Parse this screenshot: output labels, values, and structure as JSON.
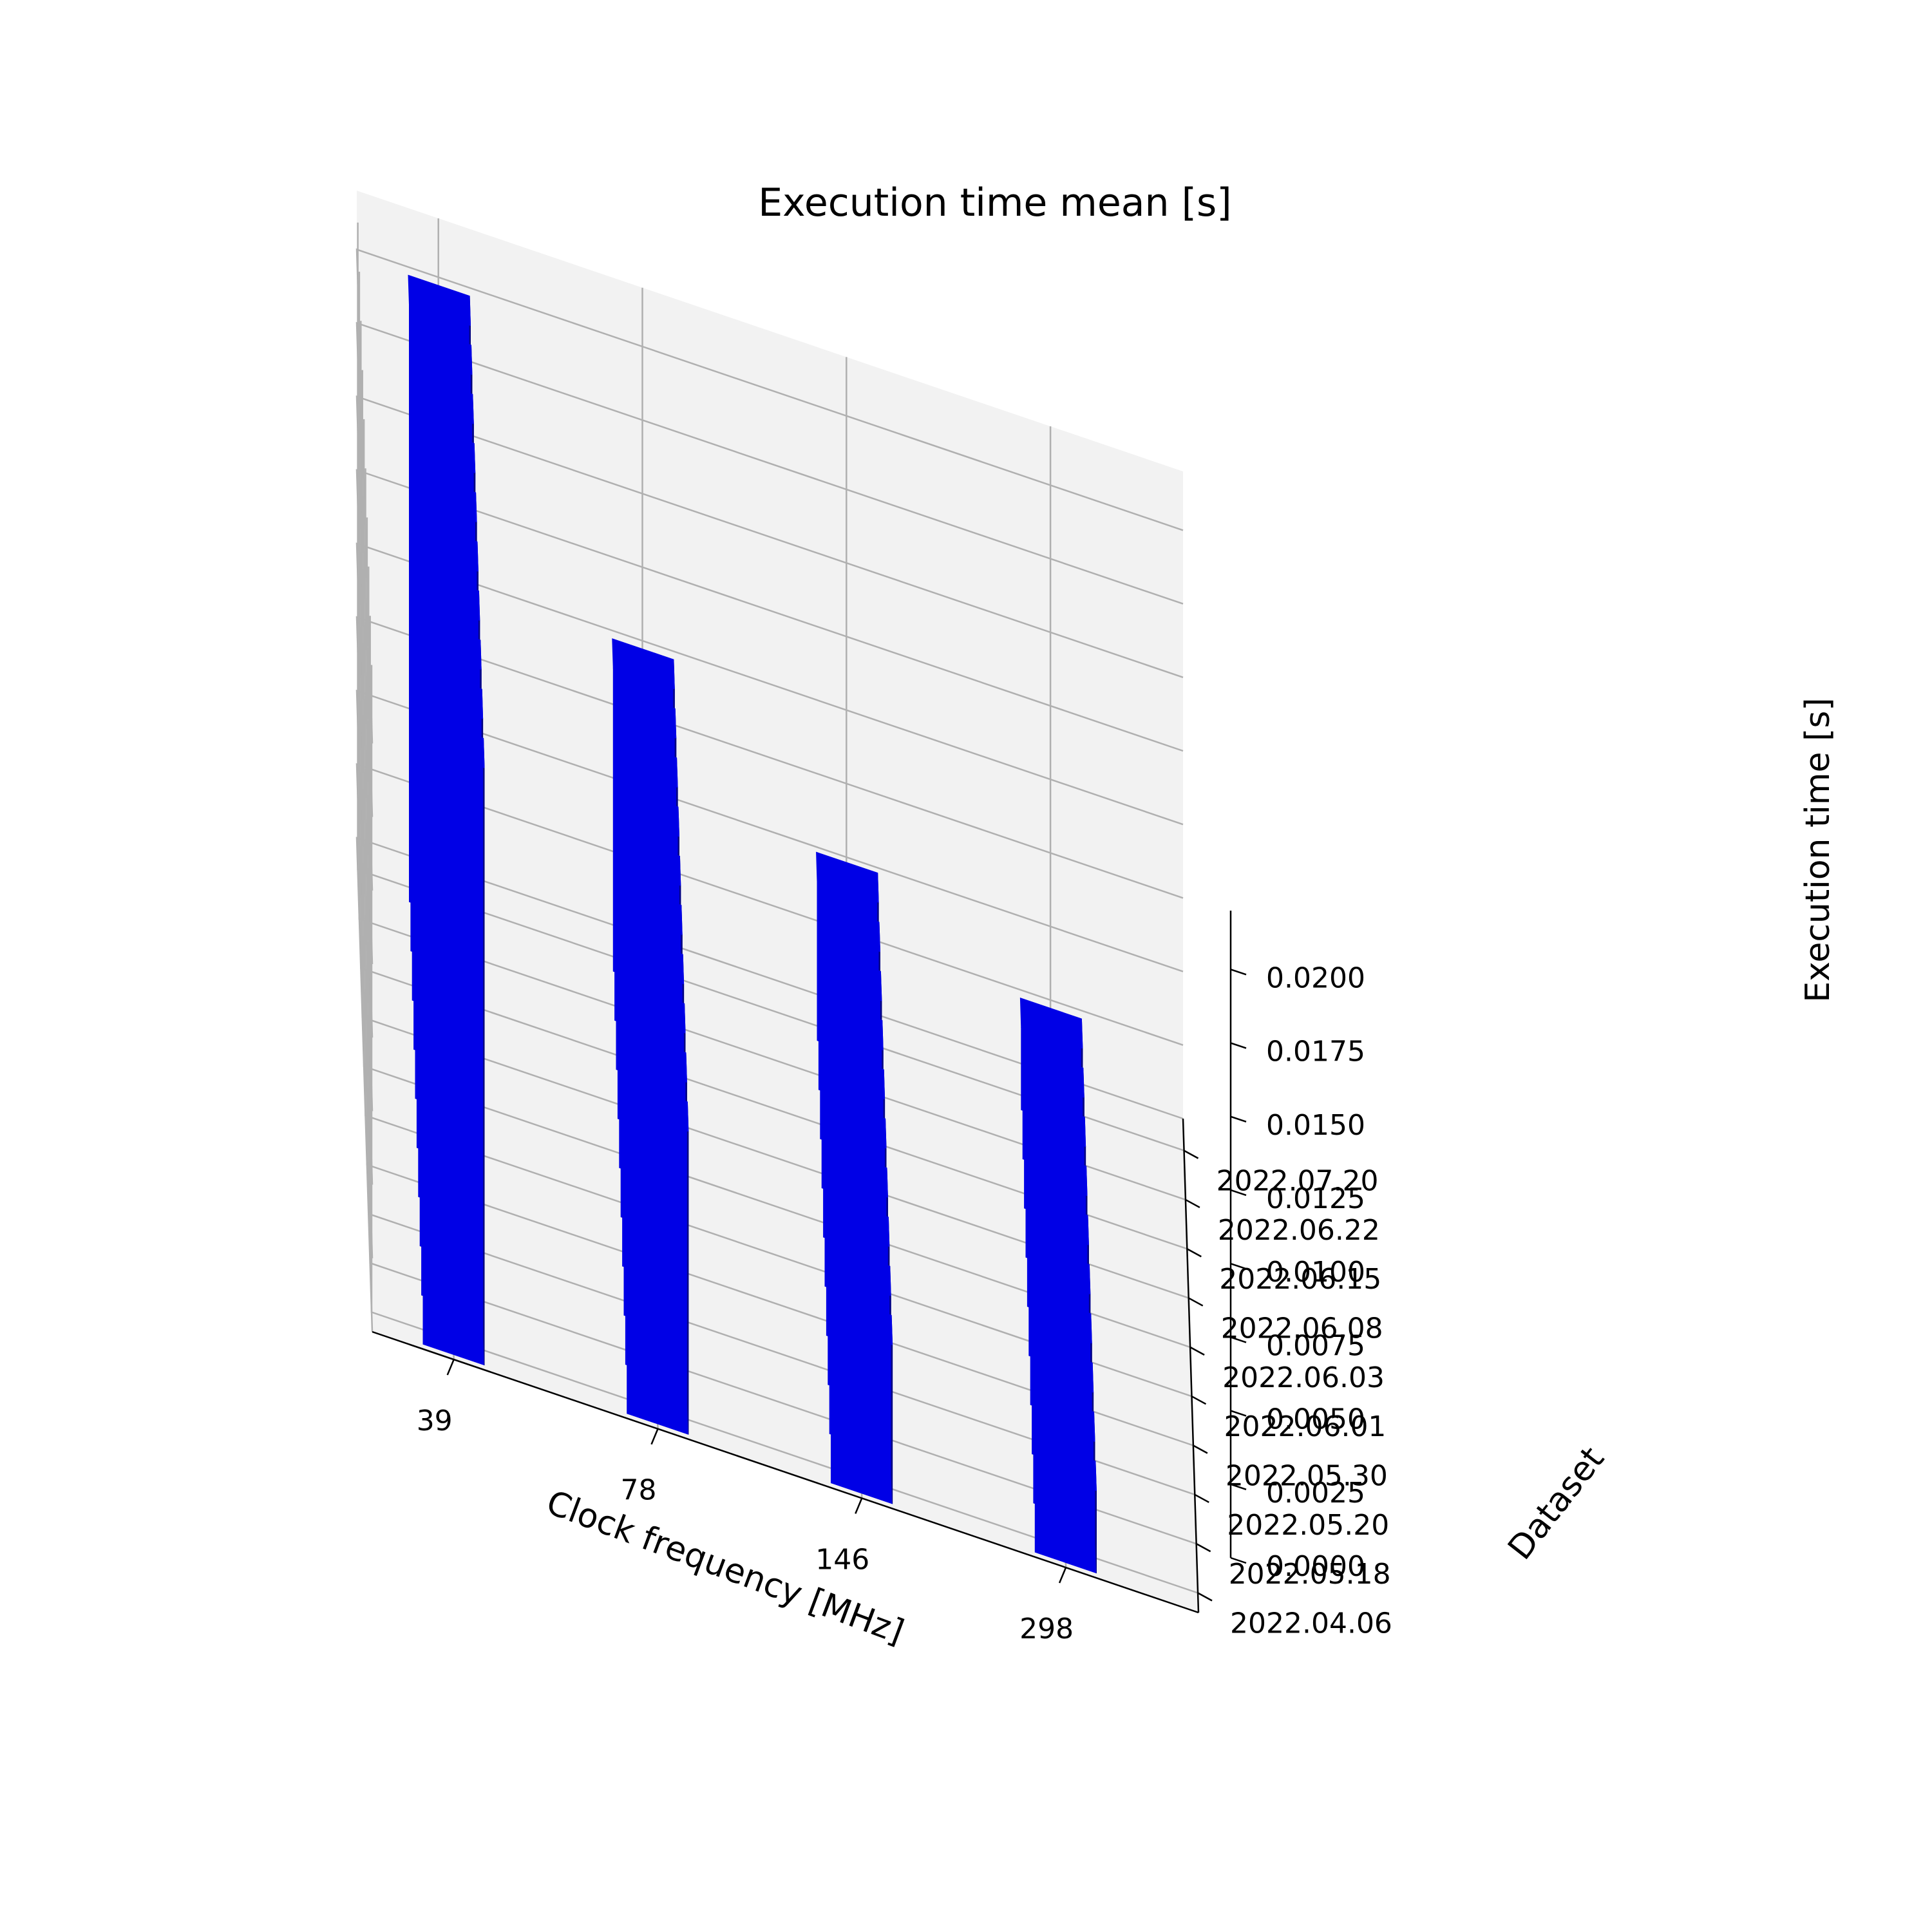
{
  "chart_data": {
    "type": "bar",
    "projection": "3d",
    "title": "Execution time mean [s]",
    "xlabel": "Clock frequency [MHz]",
    "ylabel": "Dataset",
    "zlabel": "Execution time [s]",
    "x_categories": [
      "39",
      "78",
      "146",
      "298"
    ],
    "y_categories": [
      "2022.04.06",
      "2022.05.18",
      "2022.05.20",
      "2022.05.30",
      "2022.06.01",
      "2022.06.03",
      "2022.06.08",
      "2022.06.15",
      "2022.06.22",
      "2022.07.20"
    ],
    "z_ticks": [
      "0.0000",
      "0.0025",
      "0.0050",
      "0.0075",
      "0.0100",
      "0.0125",
      "0.0150",
      "0.0175",
      "0.0200"
    ],
    "zlim": [
      0,
      0.022
    ],
    "grid": true,
    "bar_color": "#0000ff",
    "series": [
      {
        "x": "39",
        "values": [
          0.0203,
          0.0203,
          0.0203,
          0.0203,
          0.0203,
          0.0203,
          0.0203,
          0.0203,
          0.0203,
          0.0203
        ]
      },
      {
        "x": "78",
        "values": [
          0.0103,
          0.0103,
          0.0103,
          0.0103,
          0.0103,
          0.0103,
          0.0103,
          0.0103,
          0.0103,
          0.0103
        ]
      },
      {
        "x": "146",
        "values": [
          0.0054,
          0.0054,
          0.0054,
          0.0054,
          0.0054,
          0.0054,
          0.0054,
          0.0054,
          0.0054,
          0.0054
        ]
      },
      {
        "x": "298",
        "values": [
          0.0028,
          0.0028,
          0.0028,
          0.0028,
          0.0028,
          0.0028,
          0.0028,
          0.0028,
          0.0028,
          0.0028
        ]
      }
    ]
  }
}
